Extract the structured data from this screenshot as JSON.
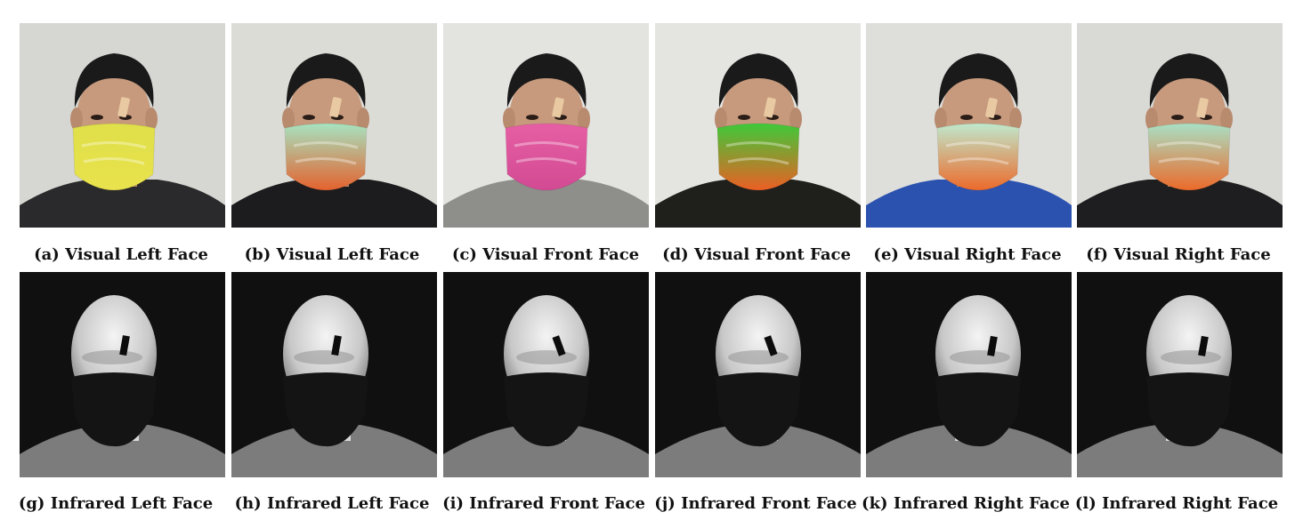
{
  "figure": {
    "panels": [
      {
        "caption": "(a) Visual Left Face",
        "modality": "visual",
        "pose": "left",
        "mask_color": "#dfe04a",
        "mask_color_2": "#e9e24c",
        "background": "#d6d7d2",
        "shirt": "#2a2a2c"
      },
      {
        "caption": "(b) Visual Left Face",
        "modality": "visual",
        "pose": "left",
        "mask_color": "#a6e3c0",
        "mask_color_2": "#e4622e",
        "background": "#dcdcd7",
        "shirt": "#1c1c1e"
      },
      {
        "caption": "(c) Visual Front Face",
        "modality": "visual",
        "pose": "front",
        "mask_color": "#e65fa4",
        "mask_color_2": "#d24a93",
        "background": "#e3e3e0",
        "shirt": "#8e8e8a"
      },
      {
        "caption": "(d) Visual Front Face",
        "modality": "visual",
        "pose": "front",
        "mask_color": "#3fc93a",
        "mask_color_2": "#ec5f24",
        "background": "#e4e4e1",
        "shirt": "#1f1f1c"
      },
      {
        "caption": "(e) Visual Right Face",
        "modality": "visual",
        "pose": "right",
        "mask_color": "#bfe8cc",
        "mask_color_2": "#ec6a2a",
        "background": "#dededa",
        "shirt": "#2c52b0"
      },
      {
        "caption": "(f) Visual Right Face",
        "modality": "visual",
        "pose": "right",
        "mask_color": "#a8e0c4",
        "mask_color_2": "#ec6a2a",
        "background": "#d9d9d5",
        "shirt": "#1e1e20"
      },
      {
        "caption": "(g) Infrared Left Face",
        "modality": "infrared",
        "pose": "left"
      },
      {
        "caption": "(h) Infrared Left Face",
        "modality": "infrared",
        "pose": "left"
      },
      {
        "caption": "(i) Infrared Front Face",
        "modality": "infrared",
        "pose": "front"
      },
      {
        "caption": "(j) Infrared Front Face",
        "modality": "infrared",
        "pose": "front"
      },
      {
        "caption": "(k) Infrared Right Face",
        "modality": "infrared",
        "pose": "right"
      },
      {
        "caption": "(l) Infrared Right Face",
        "modality": "infrared",
        "pose": "right"
      }
    ]
  }
}
